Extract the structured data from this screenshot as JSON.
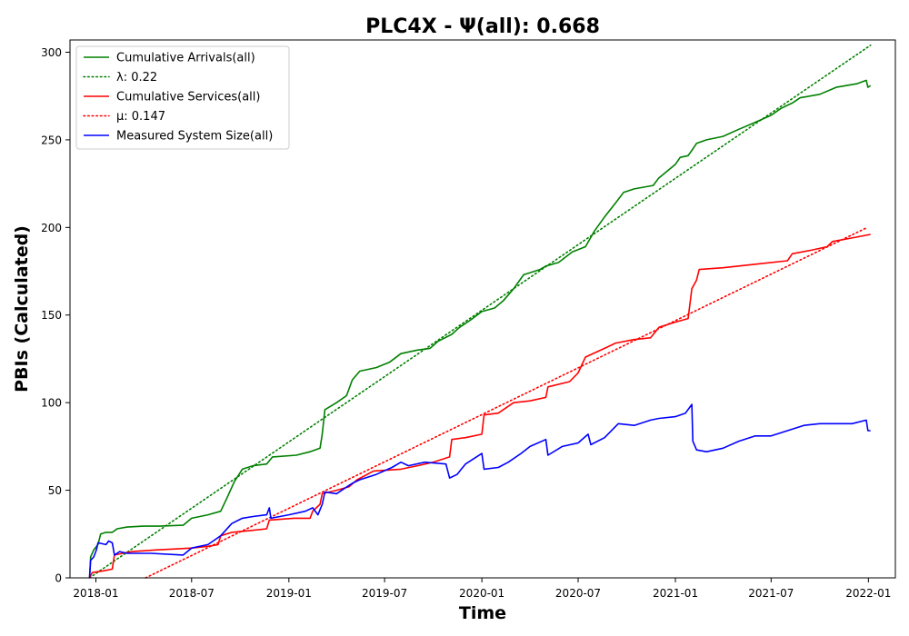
{
  "chart_data": {
    "type": "line",
    "title": "PLC4X -  Ψ(all): 0.668",
    "xlabel": "Time",
    "ylabel": "PBIs (Calculated)",
    "xlim": [
      "2017-11-13",
      "2022-02-21"
    ],
    "ylim": [
      0,
      307
    ],
    "x_ticks": [
      "2018-01",
      "2018-07",
      "2019-01",
      "2019-07",
      "2020-01",
      "2020-07",
      "2021-01",
      "2021-07",
      "2022-01"
    ],
    "y_ticks": [
      0,
      50,
      100,
      150,
      200,
      250,
      300
    ],
    "grid": false,
    "legend_position": "top-left",
    "series": [
      {
        "name": "Cumulative Arrivals(all)",
        "color": "#008000",
        "style": "solid",
        "points": [
          [
            "2017-12-20",
            0
          ],
          [
            "2017-12-22",
            12
          ],
          [
            "2017-12-28",
            16
          ],
          [
            "2018-01-05",
            19
          ],
          [
            "2018-01-10",
            25
          ],
          [
            "2018-01-20",
            26
          ],
          [
            "2018-02-01",
            26
          ],
          [
            "2018-02-10",
            28
          ],
          [
            "2018-03-01",
            29
          ],
          [
            "2018-04-01",
            29.5
          ],
          [
            "2018-05-01",
            29.5
          ],
          [
            "2018-06-15",
            30
          ],
          [
            "2018-07-01",
            34
          ],
          [
            "2018-08-01",
            36
          ],
          [
            "2018-08-25",
            38
          ],
          [
            "2018-09-05",
            45
          ],
          [
            "2018-09-20",
            55
          ],
          [
            "2018-10-05",
            62
          ],
          [
            "2018-10-25",
            64
          ],
          [
            "2018-11-20",
            65
          ],
          [
            "2018-12-01",
            69
          ],
          [
            "2019-01-15",
            70
          ],
          [
            "2019-02-10",
            72
          ],
          [
            "2019-03-01",
            74
          ],
          [
            "2019-03-05",
            82
          ],
          [
            "2019-03-10",
            96
          ],
          [
            "2019-04-01",
            100
          ],
          [
            "2019-04-20",
            104
          ],
          [
            "2019-05-01",
            113
          ],
          [
            "2019-05-15",
            118
          ],
          [
            "2019-06-15",
            120
          ],
          [
            "2019-07-10",
            123
          ],
          [
            "2019-08-01",
            128
          ],
          [
            "2019-09-01",
            130
          ],
          [
            "2019-09-25",
            131
          ],
          [
            "2019-10-10",
            135
          ],
          [
            "2019-11-05",
            139
          ],
          [
            "2019-11-20",
            143
          ],
          [
            "2019-12-10",
            147
          ],
          [
            "2020-01-01",
            152
          ],
          [
            "2020-01-25",
            154
          ],
          [
            "2020-02-10",
            158
          ],
          [
            "2020-03-01",
            165
          ],
          [
            "2020-03-20",
            173
          ],
          [
            "2020-04-20",
            176
          ],
          [
            "2020-05-01",
            178
          ],
          [
            "2020-05-25",
            180
          ],
          [
            "2020-06-20",
            186
          ],
          [
            "2020-07-15",
            189
          ],
          [
            "2020-08-01",
            198
          ],
          [
            "2020-08-20",
            206
          ],
          [
            "2020-09-10",
            214
          ],
          [
            "2020-09-25",
            220
          ],
          [
            "2020-10-15",
            222
          ],
          [
            "2020-11-20",
            224
          ],
          [
            "2020-11-30",
            228
          ],
          [
            "2021-01-01",
            236
          ],
          [
            "2021-01-10",
            240
          ],
          [
            "2021-01-25",
            241
          ],
          [
            "2021-02-01",
            244
          ],
          [
            "2021-02-10",
            248
          ],
          [
            "2021-03-01",
            250
          ],
          [
            "2021-04-01",
            252
          ],
          [
            "2021-05-01",
            256
          ],
          [
            "2021-06-01",
            260
          ],
          [
            "2021-07-01",
            264
          ],
          [
            "2021-07-20",
            268
          ],
          [
            "2021-08-10",
            271
          ],
          [
            "2021-08-25",
            274
          ],
          [
            "2021-10-01",
            276
          ],
          [
            "2021-11-01",
            280
          ],
          [
            "2021-12-10",
            282
          ],
          [
            "2021-12-28",
            284
          ],
          [
            "2021-12-31",
            280
          ],
          [
            "2022-01-05",
            281
          ]
        ]
      },
      {
        "name": "λ: 0.22",
        "color": "#008000",
        "style": "dotted",
        "points": [
          [
            "2017-12-20",
            0
          ],
          [
            "2022-01-05",
            304
          ]
        ]
      },
      {
        "name": "Cumulative Services(all)",
        "color": "#ff0000",
        "style": "solid",
        "points": [
          [
            "2017-12-20",
            0
          ],
          [
            "2017-12-25",
            3
          ],
          [
            "2018-01-15",
            4
          ],
          [
            "2018-02-01",
            5
          ],
          [
            "2018-02-05",
            13
          ],
          [
            "2018-02-20",
            14
          ],
          [
            "2018-03-10",
            15
          ],
          [
            "2018-05-01",
            16
          ],
          [
            "2018-06-01",
            16.5
          ],
          [
            "2018-07-01",
            17
          ],
          [
            "2018-08-01",
            18
          ],
          [
            "2018-08-20",
            19
          ],
          [
            "2018-08-25",
            24
          ],
          [
            "2018-09-15",
            26
          ],
          [
            "2018-10-20",
            27
          ],
          [
            "2018-11-20",
            28
          ],
          [
            "2018-11-25",
            33
          ],
          [
            "2019-01-10",
            34
          ],
          [
            "2019-02-10",
            34
          ],
          [
            "2019-02-15",
            38
          ],
          [
            "2019-03-01",
            42
          ],
          [
            "2019-03-05",
            48
          ],
          [
            "2019-04-01",
            50
          ],
          [
            "2019-04-25",
            52
          ],
          [
            "2019-05-10",
            56
          ],
          [
            "2019-06-10",
            61
          ],
          [
            "2019-08-01",
            62
          ],
          [
            "2019-09-01",
            64
          ],
          [
            "2019-10-01",
            66
          ],
          [
            "2019-11-01",
            69
          ],
          [
            "2019-11-05",
            79
          ],
          [
            "2019-12-01",
            80
          ],
          [
            "2020-01-01",
            82
          ],
          [
            "2020-01-05",
            93
          ],
          [
            "2020-02-01",
            94
          ],
          [
            "2020-03-01",
            100
          ],
          [
            "2020-04-01",
            101
          ],
          [
            "2020-05-01",
            103
          ],
          [
            "2020-05-05",
            109
          ],
          [
            "2020-06-15",
            112
          ],
          [
            "2020-07-01",
            117
          ],
          [
            "2020-07-15",
            126
          ],
          [
            "2020-08-20",
            131
          ],
          [
            "2020-09-10",
            134
          ],
          [
            "2020-10-15",
            136
          ],
          [
            "2020-11-15",
            137
          ],
          [
            "2020-12-01",
            143
          ],
          [
            "2021-01-01",
            146
          ],
          [
            "2021-01-25",
            148
          ],
          [
            "2021-02-01",
            165
          ],
          [
            "2021-02-10",
            170
          ],
          [
            "2021-02-15",
            176
          ],
          [
            "2021-04-01",
            177
          ],
          [
            "2021-06-01",
            179
          ],
          [
            "2021-08-01",
            181
          ],
          [
            "2021-08-10",
            185
          ],
          [
            "2021-09-15",
            187
          ],
          [
            "2021-10-15",
            189
          ],
          [
            "2021-10-25",
            192
          ],
          [
            "2021-12-01",
            194
          ],
          [
            "2022-01-05",
            196
          ]
        ]
      },
      {
        "name": "μ: 0.147",
        "color": "#ff0000",
        "style": "dotted",
        "points": [
          [
            "2018-04-05",
            0
          ],
          [
            "2021-12-30",
            200
          ]
        ]
      },
      {
        "name": "Measured System Size(all)",
        "color": "#0000ff",
        "style": "solid",
        "points": [
          [
            "2017-12-20",
            0
          ],
          [
            "2017-12-22",
            10
          ],
          [
            "2017-12-28",
            12
          ],
          [
            "2018-01-02",
            16
          ],
          [
            "2018-01-05",
            20
          ],
          [
            "2018-01-20",
            19
          ],
          [
            "2018-01-25",
            21
          ],
          [
            "2018-02-01",
            20
          ],
          [
            "2018-02-05",
            13
          ],
          [
            "2018-02-15",
            15
          ],
          [
            "2018-03-01",
            14
          ],
          [
            "2018-04-15",
            14
          ],
          [
            "2018-06-15",
            13
          ],
          [
            "2018-07-01",
            17
          ],
          [
            "2018-08-01",
            19
          ],
          [
            "2018-08-25",
            24
          ],
          [
            "2018-09-15",
            31
          ],
          [
            "2018-10-05",
            34
          ],
          [
            "2018-10-25",
            35
          ],
          [
            "2018-11-20",
            36
          ],
          [
            "2018-11-25",
            40
          ],
          [
            "2018-11-28",
            34
          ],
          [
            "2019-01-01",
            36
          ],
          [
            "2019-02-01",
            38
          ],
          [
            "2019-02-15",
            40
          ],
          [
            "2019-02-25",
            36
          ],
          [
            "2019-03-05",
            42
          ],
          [
            "2019-03-10",
            49
          ],
          [
            "2019-04-01",
            48
          ],
          [
            "2019-05-01",
            54
          ],
          [
            "2019-05-15",
            56
          ],
          [
            "2019-06-15",
            59
          ],
          [
            "2019-07-15",
            63
          ],
          [
            "2019-08-01",
            66
          ],
          [
            "2019-08-15",
            64
          ],
          [
            "2019-09-15",
            66
          ],
          [
            "2019-10-25",
            65
          ],
          [
            "2019-11-01",
            57
          ],
          [
            "2019-11-15",
            59
          ],
          [
            "2019-12-01",
            65
          ],
          [
            "2020-01-01",
            71
          ],
          [
            "2020-01-05",
            62
          ],
          [
            "2020-02-01",
            63
          ],
          [
            "2020-02-20",
            66
          ],
          [
            "2020-03-15",
            71
          ],
          [
            "2020-04-01",
            75
          ],
          [
            "2020-05-01",
            79
          ],
          [
            "2020-05-05",
            70
          ],
          [
            "2020-06-01",
            75
          ],
          [
            "2020-07-01",
            77
          ],
          [
            "2020-07-20",
            82
          ],
          [
            "2020-07-25",
            76
          ],
          [
            "2020-08-20",
            80
          ],
          [
            "2020-09-15",
            88
          ],
          [
            "2020-10-15",
            87
          ],
          [
            "2020-11-15",
            90
          ],
          [
            "2020-12-01",
            91
          ],
          [
            "2021-01-01",
            92
          ],
          [
            "2021-01-20",
            94
          ],
          [
            "2021-02-01",
            99
          ],
          [
            "2021-02-03",
            78
          ],
          [
            "2021-02-10",
            73
          ],
          [
            "2021-03-01",
            72
          ],
          [
            "2021-04-01",
            74
          ],
          [
            "2021-05-01",
            78
          ],
          [
            "2021-06-01",
            81
          ],
          [
            "2021-07-01",
            81
          ],
          [
            "2021-08-01",
            84
          ],
          [
            "2021-09-01",
            87
          ],
          [
            "2021-10-01",
            88
          ],
          [
            "2021-11-01",
            88
          ],
          [
            "2021-12-01",
            88
          ],
          [
            "2021-12-28",
            90
          ],
          [
            "2021-12-31",
            84
          ],
          [
            "2022-01-05",
            84
          ]
        ]
      }
    ]
  }
}
